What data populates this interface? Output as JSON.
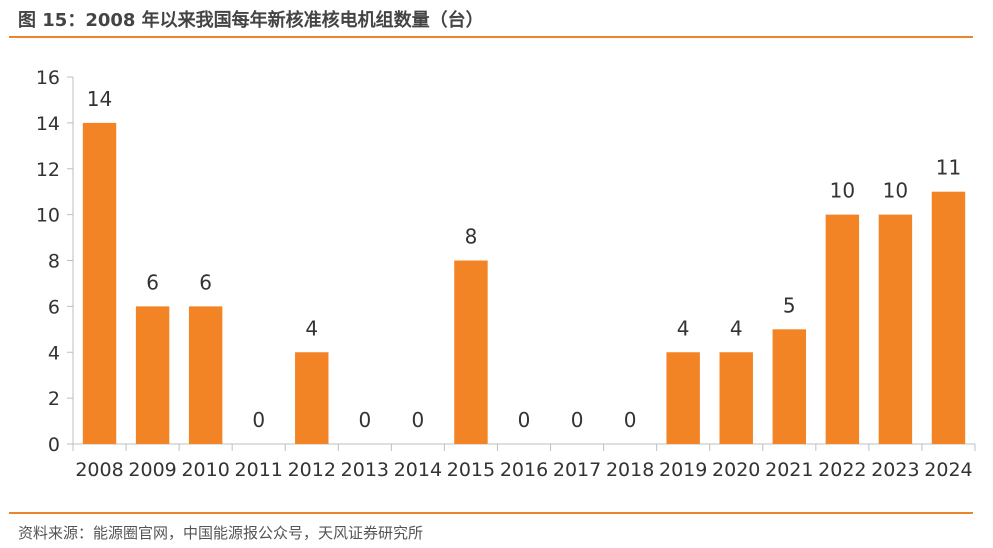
{
  "figure": {
    "title": "图 15：2008 年以来我国每年新核准核电机组数量（台）",
    "source": "资料来源：能源圈官网，中国能源报公众号，天风证券研究所"
  },
  "colors": {
    "bar": "#F28425",
    "rule": "#E8862A",
    "axis": "#BFBFBF",
    "text": "#333333"
  },
  "chart_data": {
    "type": "bar",
    "categories": [
      "2008",
      "2009",
      "2010",
      "2011",
      "2012",
      "2013",
      "2014",
      "2015",
      "2016",
      "2017",
      "2018",
      "2019",
      "2020",
      "2021",
      "2022",
      "2023",
      "2024"
    ],
    "values": [
      14,
      6,
      6,
      0,
      4,
      0,
      0,
      8,
      0,
      0,
      0,
      4,
      4,
      5,
      10,
      10,
      11
    ],
    "ylim": [
      0,
      16
    ],
    "yticks": [
      0,
      2,
      4,
      6,
      8,
      10,
      12,
      14,
      16
    ],
    "data_labels": true,
    "grid": false,
    "legend": "none"
  }
}
